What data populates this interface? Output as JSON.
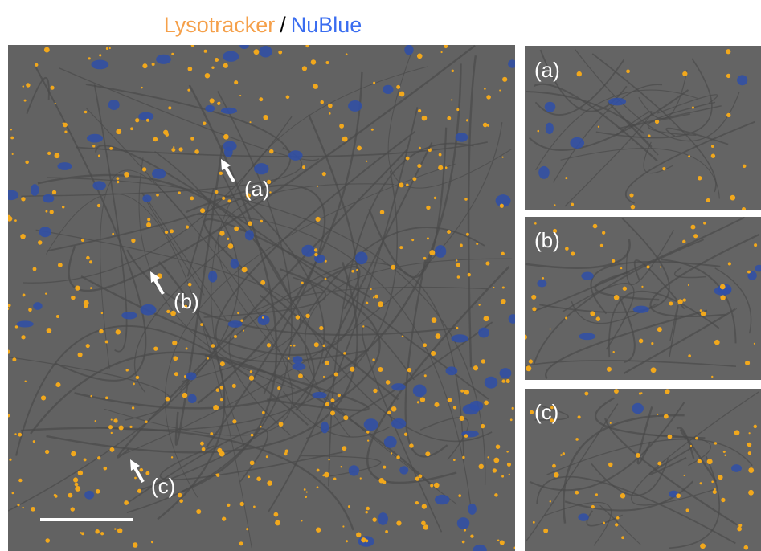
{
  "title": {
    "stain_1": "Lysotracker",
    "separator": "/",
    "stain_2": "NuBlue"
  },
  "main_panel": {
    "labels": [
      "(a)",
      "(b)",
      "(c)"
    ]
  },
  "insets": [
    {
      "label": "(a)"
    },
    {
      "label": "(b)"
    },
    {
      "label": "(c)"
    }
  ]
}
